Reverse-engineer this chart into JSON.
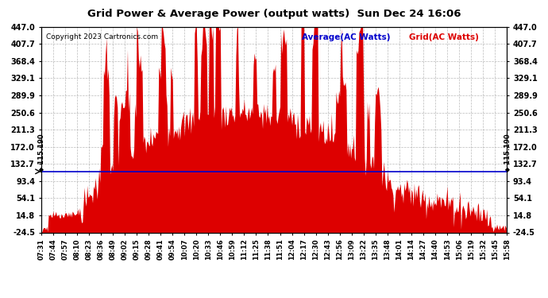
{
  "title": "Grid Power & Average Power (output watts)  Sun Dec 24 16:06",
  "copyright": "Copyright 2023 Cartronics.com",
  "legend_average": "Average(AC Watts)",
  "legend_grid": "Grid(AC Watts)",
  "yticks": [
    447.0,
    407.7,
    368.4,
    329.1,
    289.9,
    250.6,
    211.3,
    172.0,
    132.7,
    93.4,
    54.1,
    14.8,
    -24.5
  ],
  "ymin": -24.5,
  "ymax": 447.0,
  "reference_line": 115.19,
  "reference_label": "115.190",
  "background_color": "#ffffff",
  "grid_color": "#aaaaaa",
  "bar_color": "#dd0000",
  "average_color": "#0000cc",
  "title_color": "#000000",
  "legend_average_color": "#0000cc",
  "legend_grid_color": "#dd0000",
  "xtick_labels": [
    "07:31",
    "07:44",
    "07:57",
    "08:10",
    "08:23",
    "08:36",
    "08:49",
    "09:02",
    "09:15",
    "09:28",
    "09:41",
    "09:54",
    "10:07",
    "10:20",
    "10:33",
    "10:46",
    "10:59",
    "11:12",
    "11:25",
    "11:38",
    "11:51",
    "12:04",
    "12:17",
    "12:30",
    "12:43",
    "12:56",
    "13:09",
    "13:22",
    "13:35",
    "13:48",
    "14:01",
    "14:14",
    "14:27",
    "14:40",
    "14:53",
    "15:06",
    "15:19",
    "15:32",
    "15:45",
    "15:58"
  ]
}
